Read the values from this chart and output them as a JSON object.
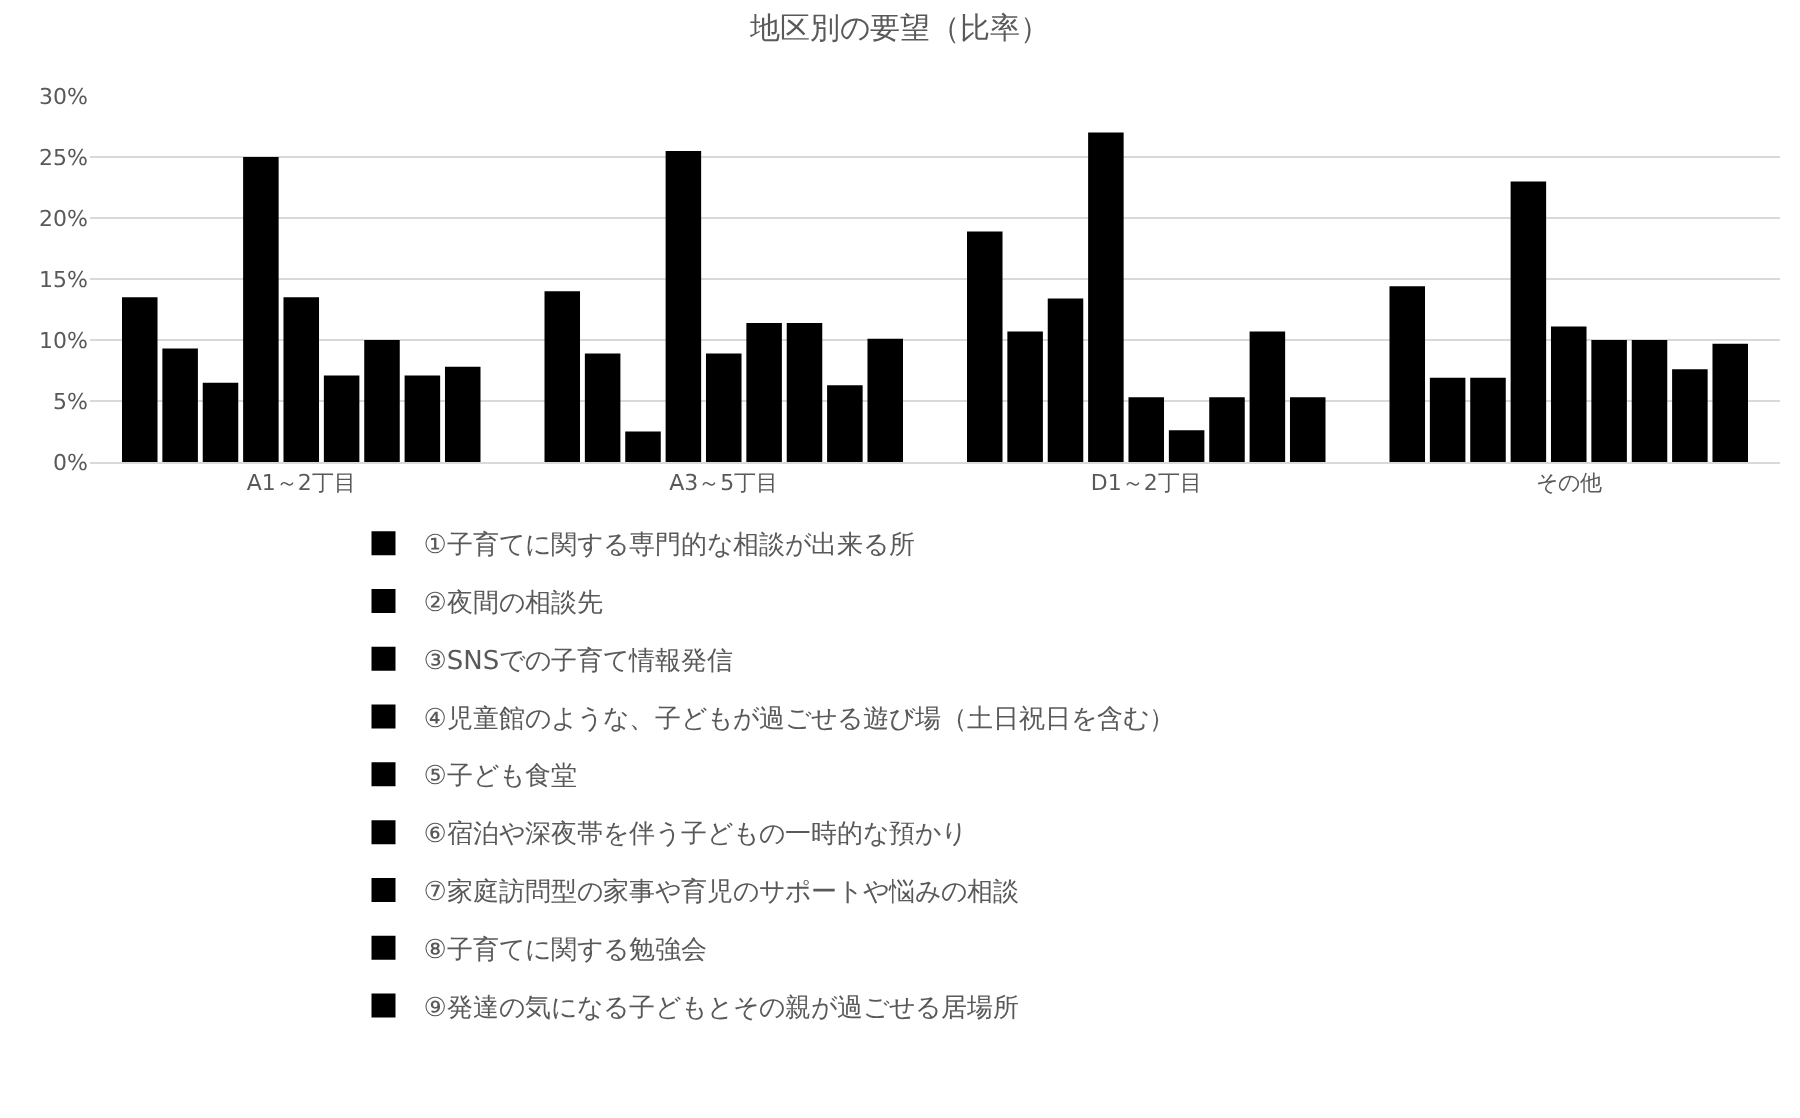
{
  "chart_data": {
    "type": "bar",
    "title": "地区別の要望（比率）",
    "categories": [
      "A1～2丁目",
      "A3～5丁目",
      "D1～2丁目",
      "その他"
    ],
    "series": [
      {
        "name": "①子育てに関する専門的な相談が出来る所",
        "color": "#000000",
        "values": [
          13.5,
          14.0,
          18.9,
          14.4
        ]
      },
      {
        "name": "②夜間の相談先",
        "color": "#000000",
        "values": [
          9.3,
          8.9,
          10.7,
          6.9
        ]
      },
      {
        "name": "③SNSでの子育て情報発信",
        "color": "#000000",
        "values": [
          6.5,
          2.5,
          13.4,
          6.9
        ]
      },
      {
        "name": "④児童館のような、子どもが過ごせる遊び場（土日祝日を含む）",
        "color": "#000000",
        "values": [
          25.0,
          25.5,
          27.0,
          23.0
        ]
      },
      {
        "name": "⑤子ども食堂",
        "color": "#000000",
        "values": [
          13.5,
          8.9,
          5.3,
          11.1
        ]
      },
      {
        "name": "⑥宿泊や深夜帯を伴う子どもの一時的な預かり",
        "color": "#000000",
        "values": [
          7.1,
          11.4,
          2.6,
          10.0
        ]
      },
      {
        "name": "⑦家庭訪問型の家事や育児のサポートや悩みの相談",
        "color": "#000000",
        "values": [
          10.0,
          11.4,
          5.3,
          10.0
        ]
      },
      {
        "name": "⑧子育てに関する勉強会",
        "color": "#000000",
        "values": [
          7.1,
          6.3,
          10.7,
          7.6
        ]
      },
      {
        "name": "⑨発達の気になる子どもとその親が過ごせる居場所",
        "color": "#000000",
        "values": [
          7.8,
          10.1,
          5.3,
          9.7
        ]
      }
    ],
    "ylim": [
      0,
      30
    ],
    "yticks": [
      {
        "value": 0,
        "label": "0%"
      },
      {
        "value": 5,
        "label": "5%"
      },
      {
        "value": 10,
        "label": "10%"
      },
      {
        "value": 15,
        "label": "15%"
      },
      {
        "value": 20,
        "label": "20%"
      },
      {
        "value": 25,
        "label": "25%"
      },
      {
        "value": 30,
        "label": "30%"
      }
    ],
    "grid": "y",
    "legend": "bottom"
  }
}
